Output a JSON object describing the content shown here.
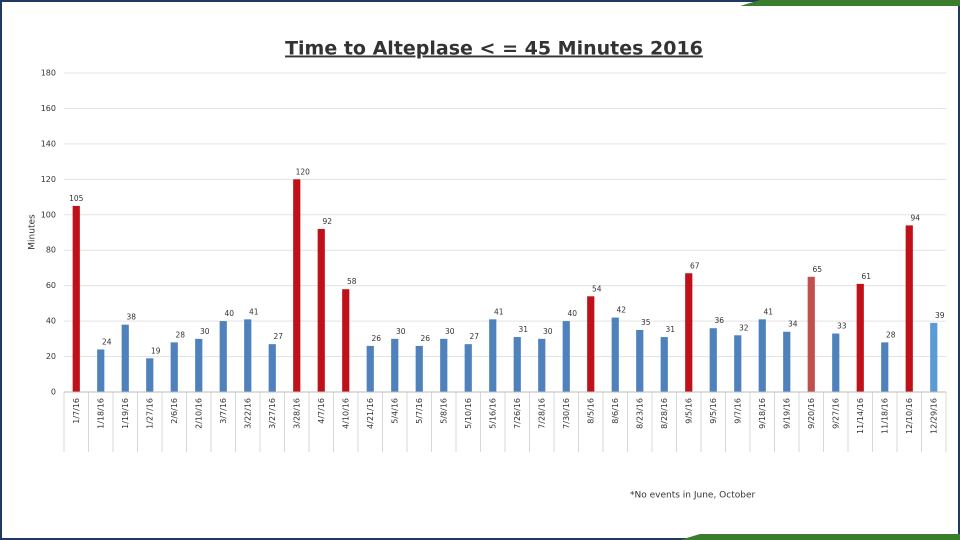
{
  "chart_data": {
    "type": "bar",
    "title": "Time to Alteplase < = 45 Minutes 2016",
    "y_label": "Minutes",
    "annotation": "*No events in June, October",
    "categories": [
      "1/7/16",
      "1/18/16",
      "1/19/16",
      "1/27/16",
      "2/6/16",
      "2/10/16",
      "3/7/16",
      "3/22/16",
      "3/27/16",
      "3/28/16",
      "4/7/16",
      "4/10/16",
      "4/21/16",
      "5/4/16",
      "5/7/16",
      "5/8/16",
      "5/10/16",
      "5/16/16",
      "7/26/16",
      "7/28/16",
      "7/30/16",
      "8/5/16",
      "8/6/16",
      "8/23/16",
      "8/28/16",
      "9/5/16",
      "9/5/16",
      "9/7/16",
      "9/18/16",
      "9/19/16",
      "9/20/16",
      "9/27/16",
      "11/14/16",
      "11/18/16",
      "12/10/16",
      "12/29/16"
    ],
    "values": [
      105,
      24,
      38,
      19,
      28,
      30,
      40,
      41,
      27,
      120,
      92,
      58,
      26,
      30,
      26,
      30,
      27,
      41,
      31,
      30,
      40,
      54,
      42,
      35,
      31,
      67,
      36,
      32,
      41,
      34,
      65,
      33,
      61,
      28,
      94,
      39
    ],
    "colors": [
      "#c0101a",
      "#4f81bd",
      "#4f81bd",
      "#4f81bd",
      "#4f81bd",
      "#4f81bd",
      "#4f81bd",
      "#4f81bd",
      "#4f81bd",
      "#c0101a",
      "#c0101a",
      "#c0101a",
      "#4f81bd",
      "#4f81bd",
      "#4f81bd",
      "#4f81bd",
      "#4f81bd",
      "#4f81bd",
      "#4f81bd",
      "#4f81bd",
      "#4f81bd",
      "#c0101a",
      "#4f81bd",
      "#4f81bd",
      "#4f81bd",
      "#c0101a",
      "#4f81bd",
      "#4f81bd",
      "#4f81bd",
      "#4f81bd",
      "#c0504d",
      "#4f81bd",
      "#c0101a",
      "#4f81bd",
      "#c0101a",
      "#5b9bd5"
    ],
    "ylim": [
      0,
      180
    ],
    "yticks": [
      0,
      20,
      40,
      60,
      80,
      100,
      120,
      140,
      160,
      180
    ],
    "grid": true
  }
}
